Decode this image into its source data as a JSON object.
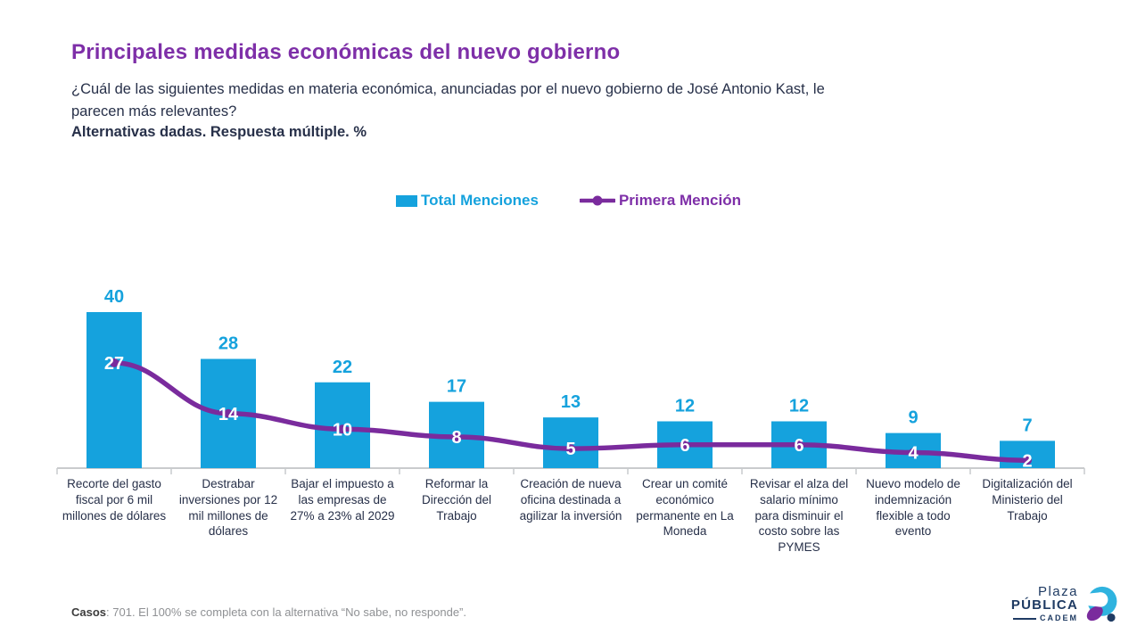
{
  "header": {
    "title": "Principales medidas económicas del nuevo gobierno",
    "subtitle": "¿Cuál de las siguientes medidas en materia económica, anunciadas por el nuevo gobierno de José Antonio Kast, le parecen más relevantes?",
    "note": "Alternativas dadas. Respuesta múltiple. %"
  },
  "legend": {
    "bar_label": "Total Menciones",
    "line_label": "Primera Mención"
  },
  "chart_data": {
    "type": "bar",
    "subtype": "bar-with-line-overlay",
    "title": "Principales medidas económicas del nuevo gobierno",
    "xlabel": "",
    "ylabel": "",
    "ylim": [
      0,
      44
    ],
    "grid": false,
    "legend_position": "top",
    "value_labels": true,
    "categories": [
      "Recorte del gasto fiscal por 6 mil millones de dólares",
      "Destrabar inversiones por 12 mil millones de dólares",
      "Bajar el impuesto a las empresas de 27% a 23% al 2029",
      "Reformar la Dirección del Trabajo",
      "Creación de nueva oficina destinada a agilizar la inversión",
      "Crear un comité económico permanente en La Moneda",
      "Revisar el alza del salario mínimo para disminuir el costo sobre las PYMES",
      "Nuevo modelo de indemnización flexible a todo evento",
      "Digitalización del Ministerio del Trabajo"
    ],
    "series": [
      {
        "name": "Total Menciones",
        "type": "bar",
        "color": "#15A2DD",
        "values": [
          40,
          28,
          22,
          17,
          13,
          12,
          12,
          9,
          7
        ]
      },
      {
        "name": "Primera Mención",
        "type": "line",
        "color": "#7A2B9D",
        "values": [
          27,
          14,
          10,
          8,
          5,
          6,
          6,
          4,
          2
        ]
      }
    ]
  },
  "footer": {
    "bold": "Casos",
    "text": ": 701. El 100% se completa con la alternativa “No sabe, no responde”."
  },
  "logo": {
    "line1": "Plaza",
    "line2": "PÚBLICA",
    "line3": "CADEM"
  },
  "colors": {
    "bar": "#15A2DD",
    "line": "#7A2B9D",
    "title": "#7E2FA8",
    "navy": "#273049",
    "gray": "#8F9194",
    "axis": "#C9CBCD"
  }
}
